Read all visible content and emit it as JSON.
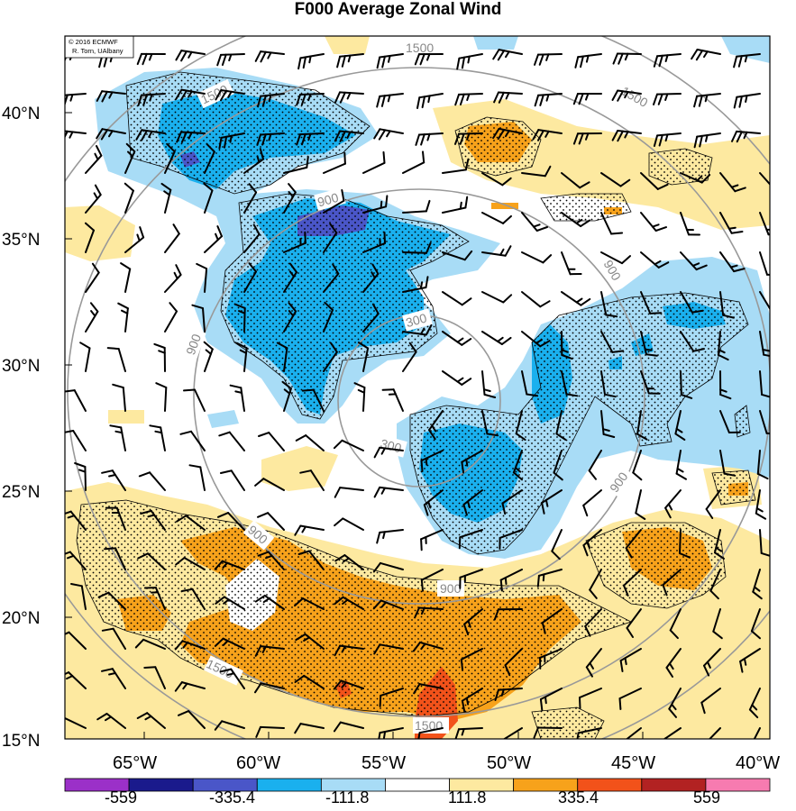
{
  "title": "F000 Average Zonal Wind",
  "credit": {
    "line1": "© 2016 ECMWF",
    "line2": "R. Torn, UAlbany"
  },
  "map": {
    "lat_labels": [
      "40°N",
      "35°N",
      "30°N",
      "25°N",
      "20°N",
      "15°N"
    ],
    "lon_labels": [
      "65°W",
      "60°W",
      "55°W",
      "50°W",
      "45°W",
      "40°W"
    ],
    "height_contour_labels": [
      "1500",
      "1500",
      "1500",
      "1500",
      "1500",
      "900",
      "900",
      "900",
      "900",
      "900",
      "900",
      "300",
      "300"
    ],
    "colors": {
      "strong_easterly": "#6a0dad",
      "easterly_4": "#1a1a8c",
      "easterly_3": "#4a56c8",
      "easterly_2": "#1ab0ee",
      "easterly_1": "#a8dcf6",
      "neutral": "#ffffff",
      "westerly_1": "#fde9a0",
      "westerly_2": "#f7a21b",
      "westerly_3": "#f2521a",
      "westerly_4": "#b22222",
      "strong_westerly": "#f77bb0"
    }
  },
  "colorbar": {
    "labels": [
      "-559",
      "-335.4",
      "-111.8",
      "111.8",
      "335.4",
      "559"
    ],
    "colors": [
      "#9b30c8",
      "#1a1a8c",
      "#4a56c8",
      "#1ab0ee",
      "#a8dcf6",
      "#ffffff",
      "#fde9a0",
      "#f7a21b",
      "#f2521a",
      "#b22222",
      "#f77bb0"
    ]
  }
}
